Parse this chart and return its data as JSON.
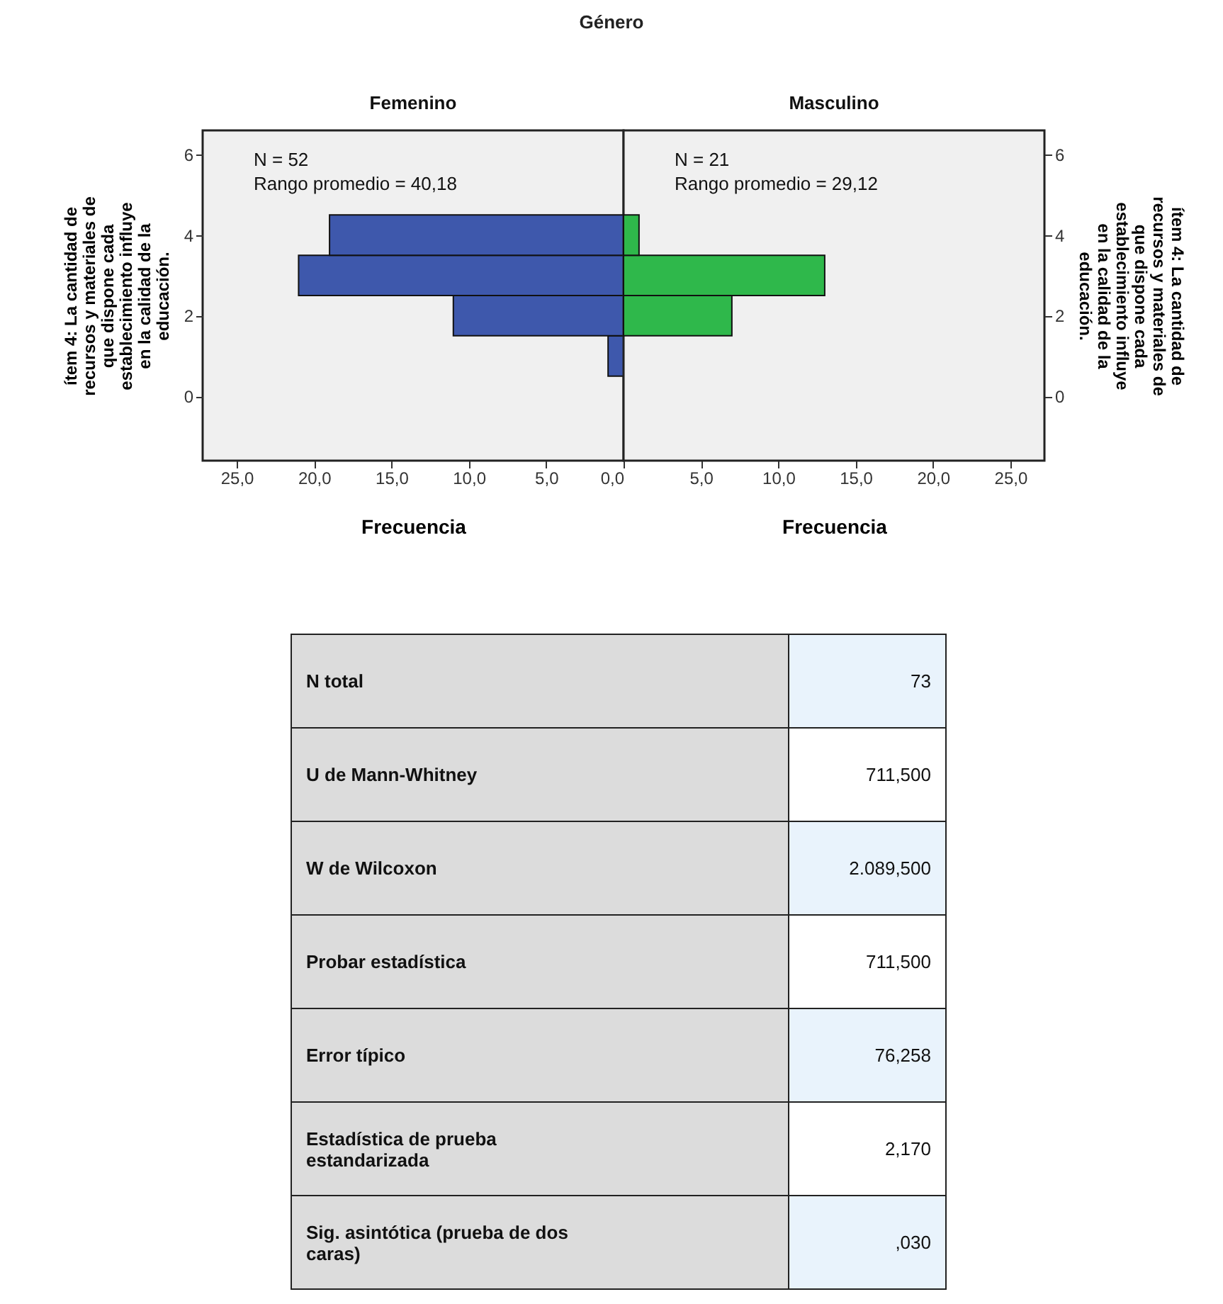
{
  "chart_data": [
    {
      "type": "other",
      "title": "Género"
    },
    {
      "type": "bar",
      "orientation": "horizontal",
      "title": "Femenino",
      "xlabel": "Frecuencia",
      "ylabel": "ítem 4: La cantidad de recursos y materiales de que dispone cada establecimiento influye en la calidad de la educación.",
      "x": [
        1,
        2,
        3,
        4
      ],
      "values": [
        1,
        11,
        21,
        19
      ],
      "color": "#3e58ac",
      "xlim": [
        27.2,
        0
      ],
      "xticks": [
        {
          "value": 25,
          "label": "25,0"
        },
        {
          "value": 20,
          "label": "20,0"
        },
        {
          "value": 15,
          "label": "15,0"
        },
        {
          "value": 10,
          "label": "10,0"
        },
        {
          "value": 5,
          "label": "5,0"
        },
        {
          "value": 0,
          "label": "0,0"
        }
      ],
      "ylim": [
        -1.6,
        6.6
      ],
      "yticks": [
        0,
        2,
        4,
        6
      ],
      "annotations": [
        "N = 52",
        "Rango promedio = 40,18"
      ]
    },
    {
      "type": "bar",
      "orientation": "horizontal",
      "title": "Masculino",
      "xlabel": "Frecuencia",
      "ylabel": "ítem 4: La cantidad de recursos y materiales de que dispone cada establecimiento influye en la calidad de la educación.",
      "x": [
        1,
        2,
        3,
        4
      ],
      "values": [
        0,
        7,
        13,
        1
      ],
      "color": "#2fb84b",
      "xlim": [
        0,
        27.2
      ],
      "xticks": [
        {
          "value": 0,
          "label": null
        },
        {
          "value": 5,
          "label": "5,0"
        },
        {
          "value": 10,
          "label": "10,0"
        },
        {
          "value": 15,
          "label": "15,0"
        },
        {
          "value": 20,
          "label": "20,0"
        },
        {
          "value": 25,
          "label": "25,0"
        }
      ],
      "ylim": [
        -1.6,
        6.6
      ],
      "yticks": [
        0,
        2,
        4,
        6
      ],
      "annotations": [
        "N = 21",
        "Rango promedio = 29,12"
      ]
    },
    {
      "type": "other",
      "annotations": [
        "N total",
        "73",
        "U de Mann-Whitney",
        "711,500",
        "W de Wilcoxon",
        "2.089,500",
        "Probar estadística",
        "711,500",
        "Error típico",
        "76,258",
        "Estadística de prueba estandarizada",
        "2,170",
        "Sig. asintótica (prueba de dos caras)",
        ",030"
      ]
    }
  ]
}
